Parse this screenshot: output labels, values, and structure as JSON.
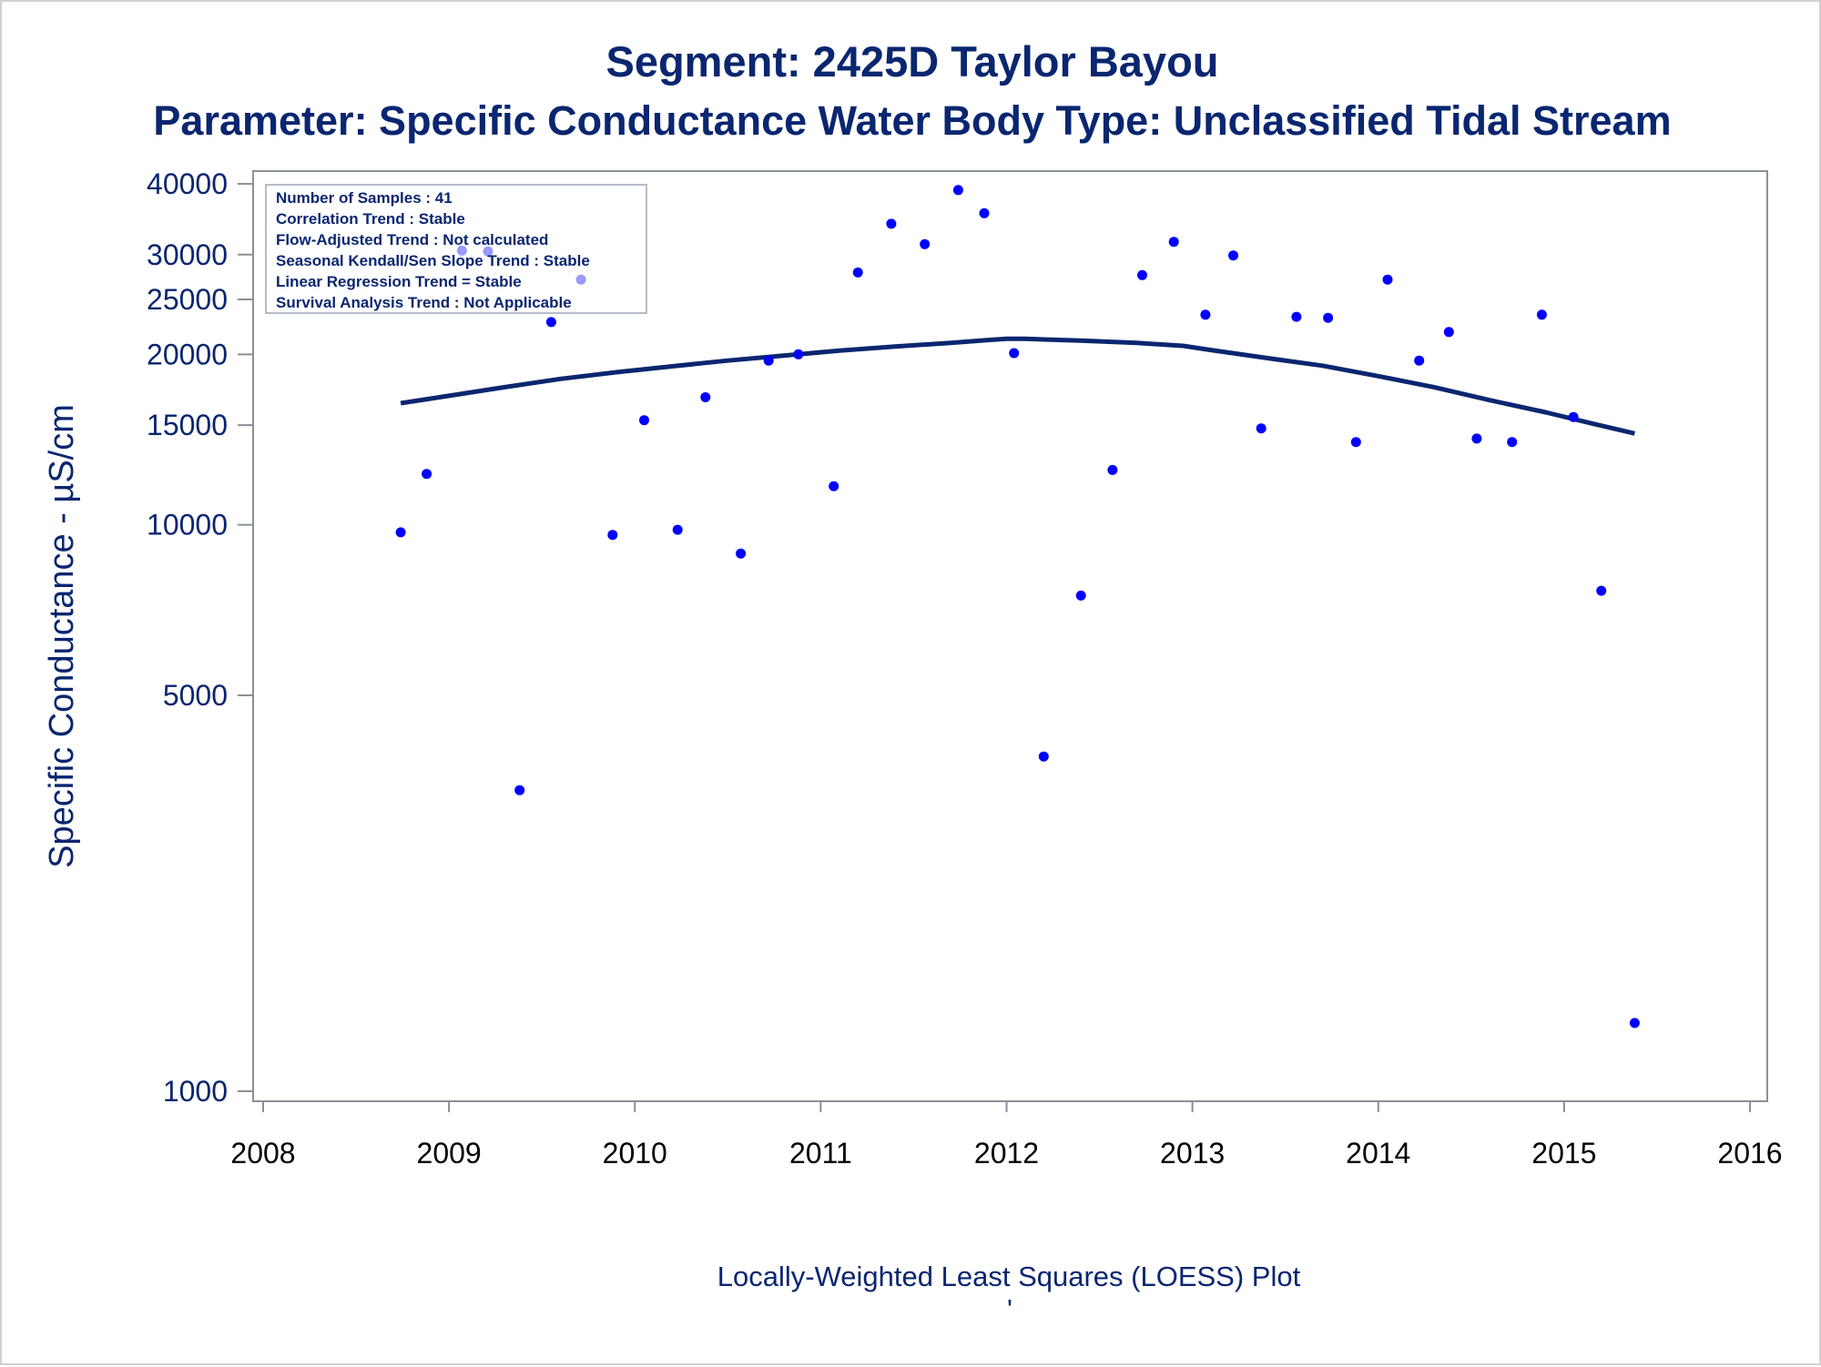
{
  "chart_data": {
    "type": "scatter",
    "title": "Segment: 2425D  Taylor Bayou",
    "subtitle": "Parameter: Specific Conductance   Water Body Type: Unclassified Tidal Stream",
    "xlabel": "Locally-Weighted Least Squares (LOESS) Plot",
    "ylabel": "Specific Conductance -  µS/cm",
    "footnote": "'",
    "yscale": "log",
    "xlim": [
      2008,
      2016
    ],
    "ylim": [
      960,
      42000
    ],
    "x_ticks": [
      "2008",
      "2009",
      "2010",
      "2011",
      "2012",
      "2013",
      "2014",
      "2015",
      "2016"
    ],
    "y_ticks": [
      "1000",
      "5000",
      "10000",
      "15000",
      "20000",
      "25000",
      "30000",
      "40000"
    ],
    "grid": false,
    "legend": "none",
    "info_box": {
      "position": "top-left",
      "lines": [
        "Number of Samples : 41",
        "Correlation Trend : Stable",
        "Flow-Adjusted Trend : Not calculated",
        "Seasonal Kendall/Sen Slope Trend : Stable",
        "Linear Regression Trend = Stable",
        "Survival Analysis Trend : Not Applicable"
      ]
    },
    "series": [
      {
        "kind": "points",
        "color": "#0000ff",
        "x": [
          2008.74,
          2008.88,
          2009.07,
          2009.21,
          2009.38,
          2009.55,
          2009.71,
          2009.88,
          2010.05,
          2010.23,
          2010.38,
          2010.57,
          2010.72,
          2010.88,
          2011.07,
          2011.2,
          2011.38,
          2011.56,
          2011.74,
          2011.88,
          2012.04,
          2012.2,
          2012.4,
          2012.57,
          2012.73,
          2012.9,
          2013.07,
          2013.22,
          2013.37,
          2013.56,
          2013.73,
          2013.88,
          2014.05,
          2014.22,
          2014.38,
          2014.53,
          2014.72,
          2014.88,
          2015.05,
          2015.2,
          2015.38
        ],
        "y": [
          9700,
          12300,
          30500,
          30400,
          3400,
          22800,
          27100,
          9600,
          15300,
          9800,
          16800,
          8900,
          19500,
          20000,
          11700,
          27900,
          34000,
          31300,
          39000,
          35500,
          20100,
          3900,
          7500,
          12500,
          27600,
          31600,
          23500,
          29900,
          14800,
          23300,
          23200,
          14000,
          27100,
          19500,
          21900,
          14200,
          14000,
          23500,
          15500,
          7650,
          1320
        ]
      },
      {
        "kind": "line",
        "name": "LOESS",
        "color": "#0a2670",
        "x": [
          2008.74,
          2009.0,
          2009.3,
          2009.6,
          2009.9,
          2010.2,
          2010.5,
          2010.8,
          2011.1,
          2011.4,
          2011.7,
          2011.9,
          2012.0,
          2012.1,
          2012.4,
          2012.7,
          2012.95,
          2013.1,
          2013.4,
          2013.7,
          2014.0,
          2014.3,
          2014.6,
          2014.9,
          2015.15,
          2015.38
        ],
        "y": [
          16400,
          16900,
          17500,
          18100,
          18600,
          19050,
          19500,
          19900,
          20300,
          20650,
          20950,
          21200,
          21300,
          21300,
          21150,
          20950,
          20700,
          20350,
          19700,
          19100,
          18300,
          17500,
          16600,
          15800,
          15100,
          14500
        ]
      }
    ]
  }
}
